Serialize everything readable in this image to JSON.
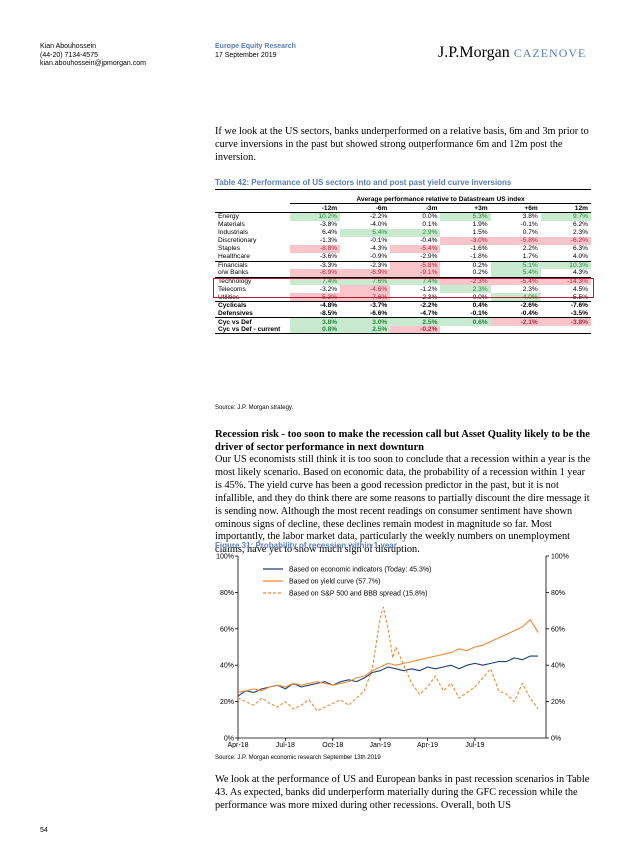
{
  "header": {
    "author_name": "Kian Abouhossein",
    "author_phone": "(44-20) 7134-4575",
    "author_email": "kian.abouhossein@jpmorgan.com",
    "publication": "Europe Equity Research",
    "date": "17 September 2019",
    "logo_main": "J.P.Morgan",
    "logo_sub": "CAZENOVE"
  },
  "intro_paragraph": "If we look at the US sectors, banks underperformed on a relative basis, 6m and 3m prior to curve inversions in the past but showed strong outperformance 6m and 12m post the inversion.",
  "table42": {
    "title": "Table 42: Performance of US sectors into and post past yield curve inversions",
    "group_header": "Average performance relative to Datastream US index",
    "columns": [
      "-12m",
      "-6m",
      "-3m",
      "+3m",
      "+6m",
      "12m"
    ],
    "rows": [
      {
        "label": "Energy",
        "values": [
          "10.2%",
          "-2.2%",
          "0.0%",
          "5.3%",
          "3.8%",
          "9.7%"
        ],
        "shade": [
          "g",
          "",
          "",
          "g",
          "",
          "g"
        ]
      },
      {
        "label": "Materials",
        "values": [
          "-3.8%",
          "-4.0%",
          "0.1%",
          "1.9%",
          "-0.1%",
          "6.2%"
        ],
        "shade": [
          "",
          "",
          "",
          "",
          "",
          ""
        ]
      },
      {
        "label": "Industrials",
        "values": [
          "6.4%",
          "5.4%",
          "2.9%",
          "1.5%",
          "0.7%",
          "2.3%"
        ],
        "shade": [
          "",
          "g",
          "g",
          "",
          "",
          ""
        ]
      },
      {
        "label": "Discretionary",
        "values": [
          "-1.3%",
          "-0.1%",
          "-0.4%",
          "-3.0%",
          "-5.8%",
          "-6.2%"
        ],
        "shade": [
          "",
          "",
          "",
          "r",
          "r",
          "r"
        ]
      },
      {
        "label": "Staples",
        "values": [
          "-8.8%",
          "-4.3%",
          "-5.4%",
          "-1.6%",
          "2.2%",
          "6.3%"
        ],
        "shade": [
          "r",
          "",
          "r",
          "",
          "",
          ""
        ]
      },
      {
        "label": "Healthcare",
        "values": [
          "-3.6%",
          "-0.9%",
          "-2.9%",
          "-1.8%",
          "1.7%",
          "4.0%"
        ],
        "shade": [
          "",
          "",
          "",
          "",
          "",
          ""
        ]
      },
      {
        "label": "Financials",
        "values": [
          "-3.3%",
          "-2.3%",
          "-5.8%",
          "0.2%",
          "5.1%",
          "10.3%"
        ],
        "shade": [
          "",
          "",
          "r",
          "",
          "g",
          "g"
        ]
      },
      {
        "label": "o/w Banks",
        "values": [
          "-6.9%",
          "-6.9%",
          "-9.1%",
          "0.2%",
          "5.4%",
          "4.3%"
        ],
        "shade": [
          "r",
          "r",
          "r",
          "",
          "g",
          ""
        ]
      },
      {
        "label": "Technology",
        "values": [
          "7.4%",
          "7.6%",
          "7.4%",
          "-2.3%",
          "-5.4%",
          "-14.3%"
        ],
        "shade": [
          "g",
          "g",
          "g",
          "r",
          "r",
          "r"
        ]
      },
      {
        "label": "Telecoms",
        "values": [
          "-3.2%",
          "-4.6%",
          "-1.2%",
          "2.3%",
          "2.3%",
          "4.5%"
        ],
        "shade": [
          "",
          "r",
          "",
          "g",
          "",
          ""
        ]
      },
      {
        "label": "Utilities",
        "values": [
          "-5.3%",
          "-7.6%",
          "-2.3%",
          "0.0%",
          "4.0%",
          "5.5%"
        ],
        "shade": [
          "r",
          "r",
          "",
          "",
          "g",
          ""
        ]
      },
      {
        "label": "Cyclicals",
        "values": [
          "-4.8%",
          "-3.7%",
          "-2.2%",
          "0.4%",
          "-2.6%",
          "-7.6%"
        ],
        "shade": [
          "",
          "",
          "",
          "",
          "",
          ""
        ]
      },
      {
        "label": "Defensives",
        "values": [
          "-8.5%",
          "-6.6%",
          "-4.7%",
          "-0.1%",
          "-0.4%",
          "-3.5%"
        ],
        "shade": [
          "",
          "",
          "",
          "",
          "",
          ""
        ]
      },
      {
        "label": "Cyc vs Def",
        "values": [
          "3.8%",
          "3.0%",
          "2.5%",
          "0.6%",
          "-2.1%",
          "-3.8%"
        ],
        "shade": [
          "g",
          "g",
          "g",
          "g",
          "r",
          "r"
        ]
      },
      {
        "label": "Cyc vs Def - current",
        "values": [
          "0.8%",
          "2.5%",
          "-0.2%",
          "",
          "",
          ""
        ],
        "shade": [
          "g",
          "g",
          "r",
          "",
          "",
          ""
        ]
      }
    ],
    "source": "Source: J.P. Morgan strategy."
  },
  "section_heading": "Recession risk - too soon to make the recession call but Asset Quality likely to be the driver of sector performance in next downturn",
  "recession_paragraph": "Our US economists still think it is too soon to conclude that a recession within a year is the most likely scenario. Based on economic data, the probability of a recession within 1 year is 45%. The yield curve has been a good recession predictor in the past, but it is not infallible, and they do think there are some reasons to partially discount the dire message it is sending now. Although the most recent readings on consumer sentiment have shown ominous signs of decline, these declines remain modest in magnitude so far. Most importantly, the labor market data, particularly the weekly numbers on unemployment claims, have yet to show much sign of disruption.",
  "figure31": {
    "title": "Figure 31: Probability of recession within 1 year",
    "source": "Source: J.P. Morgan economic research September 13th 2019"
  },
  "chart_data": {
    "type": "line",
    "title": "Figure 31: Probability of recession within 1 year",
    "x_tick_labels": [
      "Apr-18",
      "Jul-18",
      "Oct-18",
      "Jan-19",
      "Apr-19",
      "Jul-19"
    ],
    "x_tick_months": [
      0,
      3,
      6,
      9,
      12,
      15
    ],
    "x_range_months": [
      0,
      19.5
    ],
    "y_tick_labels": [
      "0%",
      "20%",
      "40%",
      "60%",
      "80%",
      "100%"
    ],
    "y_right_tick_labels": [
      "0%",
      "20%",
      "40%",
      "60%",
      "80%",
      "100%"
    ],
    "ylim": [
      0,
      100
    ],
    "grid": false,
    "legend_position": "top-left",
    "series": [
      {
        "name": "Based on economic indicators (Today: 45.3%)",
        "color": "#1f3f73",
        "dash": "solid",
        "x": [
          0,
          0.5,
          1,
          1.5,
          2,
          2.5,
          3,
          3.5,
          4,
          4.5,
          5,
          5.5,
          6,
          6.5,
          7,
          7.5,
          8,
          8.5,
          9,
          9.5,
          10,
          10.5,
          11,
          11.5,
          12,
          12.5,
          13,
          13.5,
          14,
          14.5,
          15,
          15.5,
          16,
          16.5,
          17,
          17.5,
          18,
          18.5,
          19
        ],
        "y": [
          23,
          26,
          25,
          27,
          28,
          29,
          27,
          30,
          28,
          29,
          30,
          31,
          29,
          31,
          32,
          31,
          33,
          36,
          37,
          39,
          38,
          37,
          38,
          37,
          39,
          38,
          39,
          40,
          38,
          40,
          41,
          40,
          41,
          42,
          42,
          44,
          43,
          45,
          45
        ]
      },
      {
        "name": "Based on yield curve (57.7%)",
        "color": "#ee8a32",
        "dash": "solid",
        "x": [
          0,
          0.5,
          1,
          1.5,
          2,
          2.5,
          3,
          3.5,
          4,
          4.5,
          5,
          5.5,
          6,
          6.5,
          7,
          7.5,
          8,
          8.5,
          9,
          9.5,
          10,
          10.5,
          11,
          11.5,
          12,
          12.5,
          13,
          13.5,
          14,
          14.5,
          15,
          15.5,
          16,
          16.5,
          17,
          17.5,
          18,
          18.5,
          19
        ],
        "y": [
          25,
          26,
          27,
          26,
          28,
          29,
          28,
          30,
          29,
          30,
          31,
          30,
          29,
          30,
          31,
          33,
          34,
          37,
          39,
          41,
          40,
          41,
          42,
          43,
          44,
          45,
          46,
          47,
          49,
          48,
          50,
          51,
          53,
          55,
          57,
          59,
          61,
          65,
          58
        ]
      },
      {
        "name": "Based on S&P 500 and BBB spread (15.8%)",
        "color": "#ee8a32",
        "dash": "dashed",
        "x": [
          0,
          0.5,
          1,
          1.5,
          2,
          2.5,
          3,
          3.5,
          4,
          4.5,
          5,
          5.5,
          6,
          6.5,
          7,
          7.5,
          8,
          8.5,
          9,
          9.2,
          9.5,
          9.8,
          10,
          10.5,
          11,
          11.5,
          12,
          12.5,
          13,
          13.5,
          14,
          14.5,
          15,
          15.5,
          16,
          16.5,
          17,
          17.5,
          18,
          18.5,
          19
        ],
        "y": [
          22,
          20,
          18,
          22,
          19,
          17,
          20,
          16,
          18,
          21,
          15,
          17,
          19,
          21,
          18,
          22,
          26,
          38,
          66,
          72,
          60,
          44,
          50,
          40,
          30,
          24,
          28,
          34,
          26,
          30,
          22,
          25,
          28,
          33,
          38,
          26,
          24,
          20,
          30,
          22,
          16
        ]
      }
    ]
  },
  "closing_paragraph": "We look at the performance of US and European banks in past recession scenarios in Table 43. As expected, banks did underperform materially during the GFC recession while the performance was more mixed during other recessions. Overall, both US",
  "page_number": "54"
}
